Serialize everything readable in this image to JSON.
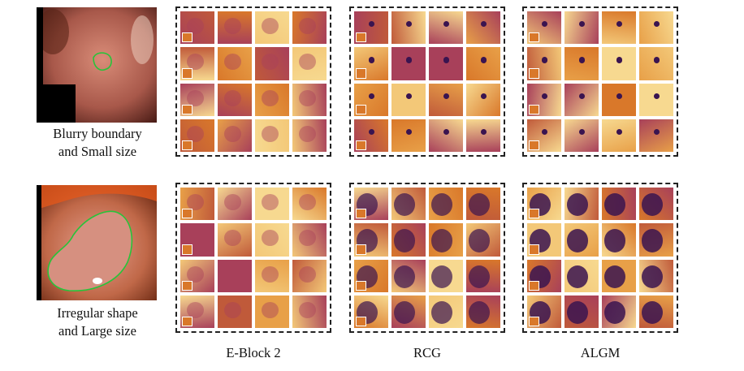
{
  "figure": {
    "rows": [
      {
        "caption_line1": "Blurry boundary",
        "caption_line2": "and Small size"
      },
      {
        "caption_line1": "Irregular shape",
        "caption_line2": "and Large size"
      }
    ],
    "columns": [
      {
        "label": "E-Block 2"
      },
      {
        "label": "RCG"
      },
      {
        "label": "ALGM"
      }
    ],
    "colors": {
      "dark": "#3a1450",
      "mid": "#a8405a",
      "orange": "#d9782a",
      "light": "#f7d990",
      "outline": "#27c43a"
    }
  }
}
